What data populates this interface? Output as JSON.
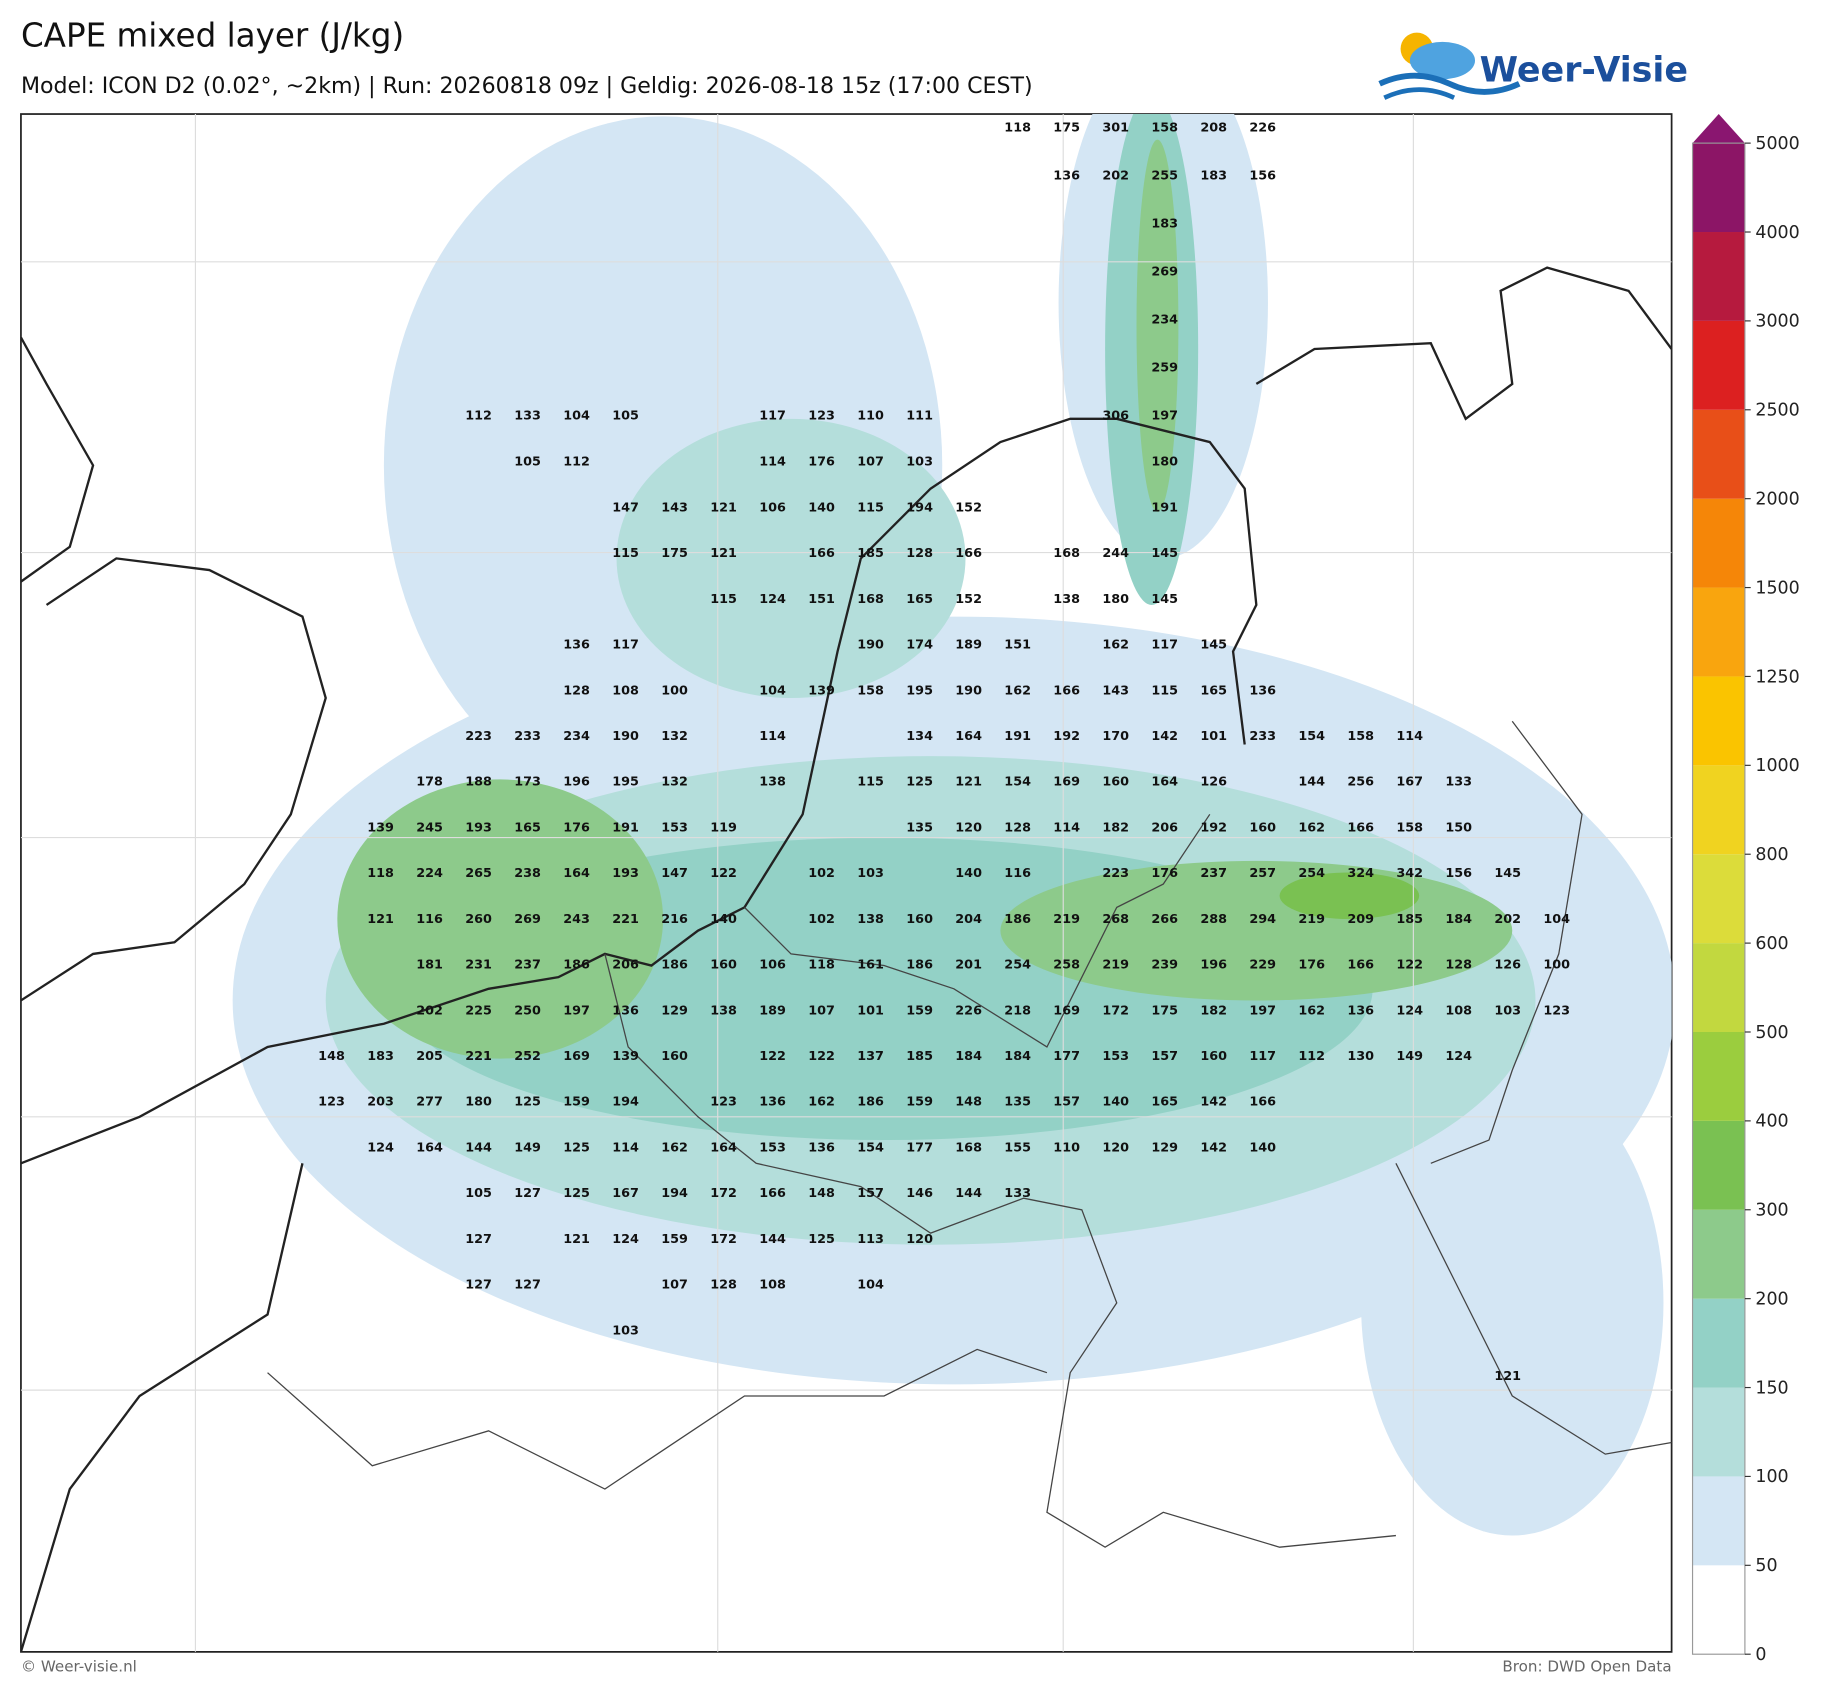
{
  "header": {
    "title": "CAPE mixed layer (J/kg)",
    "subtitle": "Model: ICON D2 (0.02°, ~2km)  |  Run: 20260818 09z  |  Geldig: 2026-08-18 15z (17:00 CEST)"
  },
  "logo": {
    "text": "Weer-Visie"
  },
  "footer": {
    "left": "© Weer-visie.nl",
    "right": "Bron: DWD Open Data"
  },
  "colorbar": {
    "levels": [
      0,
      50,
      100,
      150,
      200,
      300,
      400,
      500,
      600,
      800,
      1000,
      1250,
      1500,
      2000,
      2500,
      3000,
      4000,
      5000
    ],
    "colors": [
      "#ffffff",
      "#d4e6f4",
      "#b4dedb",
      "#93d1c6",
      "#8dca8b",
      "#7ac152",
      "#9bcd3e",
      "#c2d83f",
      "#dcdc3a",
      "#f0d320",
      "#fac400",
      "#f9a50e",
      "#f58608",
      "#e84f18",
      "#dc2020",
      "#b61a3e",
      "#8c1566"
    ],
    "extend_color": "#8a1670"
  },
  "labels": {
    "rows": [
      [
        null,
        null,
        null,
        null,
        null,
        null,
        null,
        null,
        null,
        null,
        null,
        null,
        null,
        null,
        118,
        175,
        301,
        158,
        208,
        226,
        null,
        null,
        null,
        null,
        null,
        null
      ],
      [
        null,
        null,
        null,
        null,
        null,
        null,
        null,
        null,
        null,
        null,
        null,
        null,
        null,
        null,
        null,
        136,
        202,
        255,
        183,
        156,
        null,
        null,
        null,
        null,
        null,
        null
      ],
      [
        null,
        null,
        null,
        null,
        null,
        null,
        null,
        null,
        null,
        null,
        null,
        null,
        null,
        null,
        null,
        null,
        null,
        183,
        null,
        null,
        null,
        null,
        null,
        null,
        null,
        null
      ],
      [
        null,
        null,
        null,
        null,
        null,
        null,
        null,
        null,
        null,
        null,
        null,
        null,
        null,
        null,
        null,
        null,
        null,
        269,
        null,
        null,
        null,
        null,
        null,
        null,
        null,
        null
      ],
      [
        null,
        null,
        null,
        null,
        null,
        null,
        null,
        null,
        null,
        null,
        null,
        null,
        null,
        null,
        null,
        null,
        null,
        234,
        null,
        null,
        null,
        null,
        null,
        null,
        null,
        null
      ],
      [
        null,
        null,
        null,
        null,
        null,
        null,
        null,
        null,
        null,
        null,
        null,
        null,
        null,
        null,
        null,
        null,
        null,
        259,
        null,
        null,
        null,
        null,
        null,
        null,
        null,
        null
      ],
      [
        null,
        null,
        null,
        112,
        133,
        104,
        105,
        null,
        null,
        117,
        123,
        110,
        111,
        null,
        null,
        null,
        306,
        197,
        null,
        null,
        null,
        null,
        null,
        null,
        null,
        null
      ],
      [
        null,
        null,
        null,
        null,
        105,
        112,
        null,
        null,
        null,
        114,
        176,
        107,
        103,
        null,
        null,
        null,
        null,
        180,
        null,
        null,
        null,
        null,
        null,
        null,
        null,
        null
      ],
      [
        null,
        null,
        null,
        null,
        null,
        null,
        147,
        143,
        121,
        106,
        140,
        115,
        194,
        152,
        null,
        null,
        null,
        191,
        null,
        null,
        null,
        null,
        null,
        null,
        null,
        null
      ],
      [
        null,
        null,
        null,
        null,
        null,
        null,
        115,
        175,
        121,
        null,
        166,
        185,
        128,
        166,
        null,
        168,
        244,
        145,
        null,
        null,
        null,
        null,
        null,
        null,
        null,
        null
      ],
      [
        null,
        null,
        null,
        null,
        null,
        null,
        null,
        null,
        115,
        124,
        151,
        168,
        165,
        152,
        null,
        138,
        180,
        145,
        null,
        null,
        null,
        null,
        null,
        null,
        null,
        null
      ],
      [
        null,
        null,
        null,
        null,
        null,
        136,
        117,
        null,
        null,
        null,
        null,
        190,
        174,
        189,
        151,
        null,
        162,
        117,
        145,
        null,
        null,
        null,
        null,
        null,
        null,
        null
      ],
      [
        null,
        null,
        null,
        null,
        null,
        128,
        108,
        100,
        null,
        104,
        139,
        158,
        195,
        190,
        162,
        166,
        143,
        115,
        165,
        136,
        null,
        null,
        null,
        null,
        null,
        null
      ],
      [
        null,
        null,
        null,
        223,
        233,
        234,
        190,
        132,
        null,
        114,
        null,
        null,
        134,
        164,
        191,
        192,
        170,
        142,
        101,
        233,
        154,
        158,
        114,
        null,
        null,
        null
      ],
      [
        null,
        null,
        178,
        188,
        173,
        196,
        195,
        132,
        null,
        138,
        null,
        115,
        125,
        121,
        154,
        169,
        160,
        164,
        126,
        null,
        144,
        256,
        167,
        133,
        null,
        null
      ],
      [
        null,
        139,
        245,
        193,
        165,
        176,
        191,
        153,
        119,
        null,
        null,
        null,
        135,
        120,
        128,
        114,
        182,
        206,
        192,
        160,
        162,
        166,
        158,
        150,
        null,
        null
      ],
      [
        null,
        118,
        224,
        265,
        238,
        164,
        193,
        147,
        122,
        null,
        102,
        103,
        null,
        140,
        116,
        null,
        223,
        176,
        237,
        257,
        254,
        324,
        342,
        156,
        145,
        null
      ],
      [
        null,
        121,
        116,
        260,
        269,
        243,
        221,
        216,
        140,
        null,
        102,
        138,
        160,
        204,
        186,
        219,
        268,
        266,
        288,
        294,
        219,
        209,
        185,
        184,
        202,
        104
      ],
      [
        null,
        null,
        181,
        231,
        237,
        186,
        206,
        186,
        160,
        106,
        118,
        161,
        186,
        201,
        254,
        258,
        219,
        239,
        196,
        229,
        176,
        166,
        122,
        128,
        126,
        100
      ],
      [
        null,
        null,
        202,
        225,
        250,
        197,
        136,
        129,
        138,
        189,
        107,
        101,
        159,
        226,
        218,
        169,
        172,
        175,
        182,
        197,
        162,
        136,
        124,
        108,
        103,
        123
      ],
      [
        148,
        183,
        205,
        221,
        252,
        169,
        139,
        160,
        null,
        122,
        122,
        137,
        185,
        184,
        184,
        177,
        153,
        157,
        160,
        117,
        112,
        130,
        149,
        124,
        null,
        null
      ],
      [
        123,
        203,
        277,
        180,
        125,
        159,
        194,
        null,
        123,
        136,
        162,
        186,
        159,
        148,
        135,
        157,
        140,
        165,
        142,
        166,
        null,
        null,
        null,
        null,
        null,
        null
      ],
      [
        null,
        124,
        164,
        144,
        149,
        125,
        114,
        162,
        164,
        153,
        136,
        154,
        177,
        168,
        155,
        110,
        120,
        129,
        142,
        140,
        null,
        null,
        null,
        null,
        null,
        null
      ],
      [
        null,
        null,
        null,
        105,
        127,
        125,
        167,
        194,
        172,
        166,
        148,
        157,
        146,
        144,
        133,
        null,
        null,
        null,
        null,
        null,
        null,
        null,
        null,
        null,
        null,
        null
      ],
      [
        null,
        null,
        null,
        127,
        null,
        121,
        124,
        159,
        172,
        144,
        125,
        113,
        120,
        null,
        null,
        null,
        null,
        null,
        null,
        null,
        null,
        null,
        null,
        null,
        null,
        null
      ],
      [
        null,
        null,
        null,
        127,
        127,
        null,
        null,
        107,
        128,
        108,
        null,
        104,
        null,
        null,
        null,
        null,
        null,
        null,
        null,
        null,
        null,
        null,
        null,
        null,
        null,
        null
      ],
      [
        null,
        null,
        null,
        null,
        null,
        null,
        103,
        null,
        null,
        null,
        null,
        null,
        null,
        null,
        null,
        null,
        null,
        null,
        null,
        null,
        null,
        null,
        null,
        null,
        null,
        null
      ],
      [
        null,
        null,
        null,
        null,
        null,
        null,
        null,
        null,
        null,
        null,
        null,
        null,
        null,
        null,
        null,
        null,
        null,
        null,
        null,
        null,
        null,
        null,
        null,
        null,
        121,
        null
      ]
    ]
  }
}
